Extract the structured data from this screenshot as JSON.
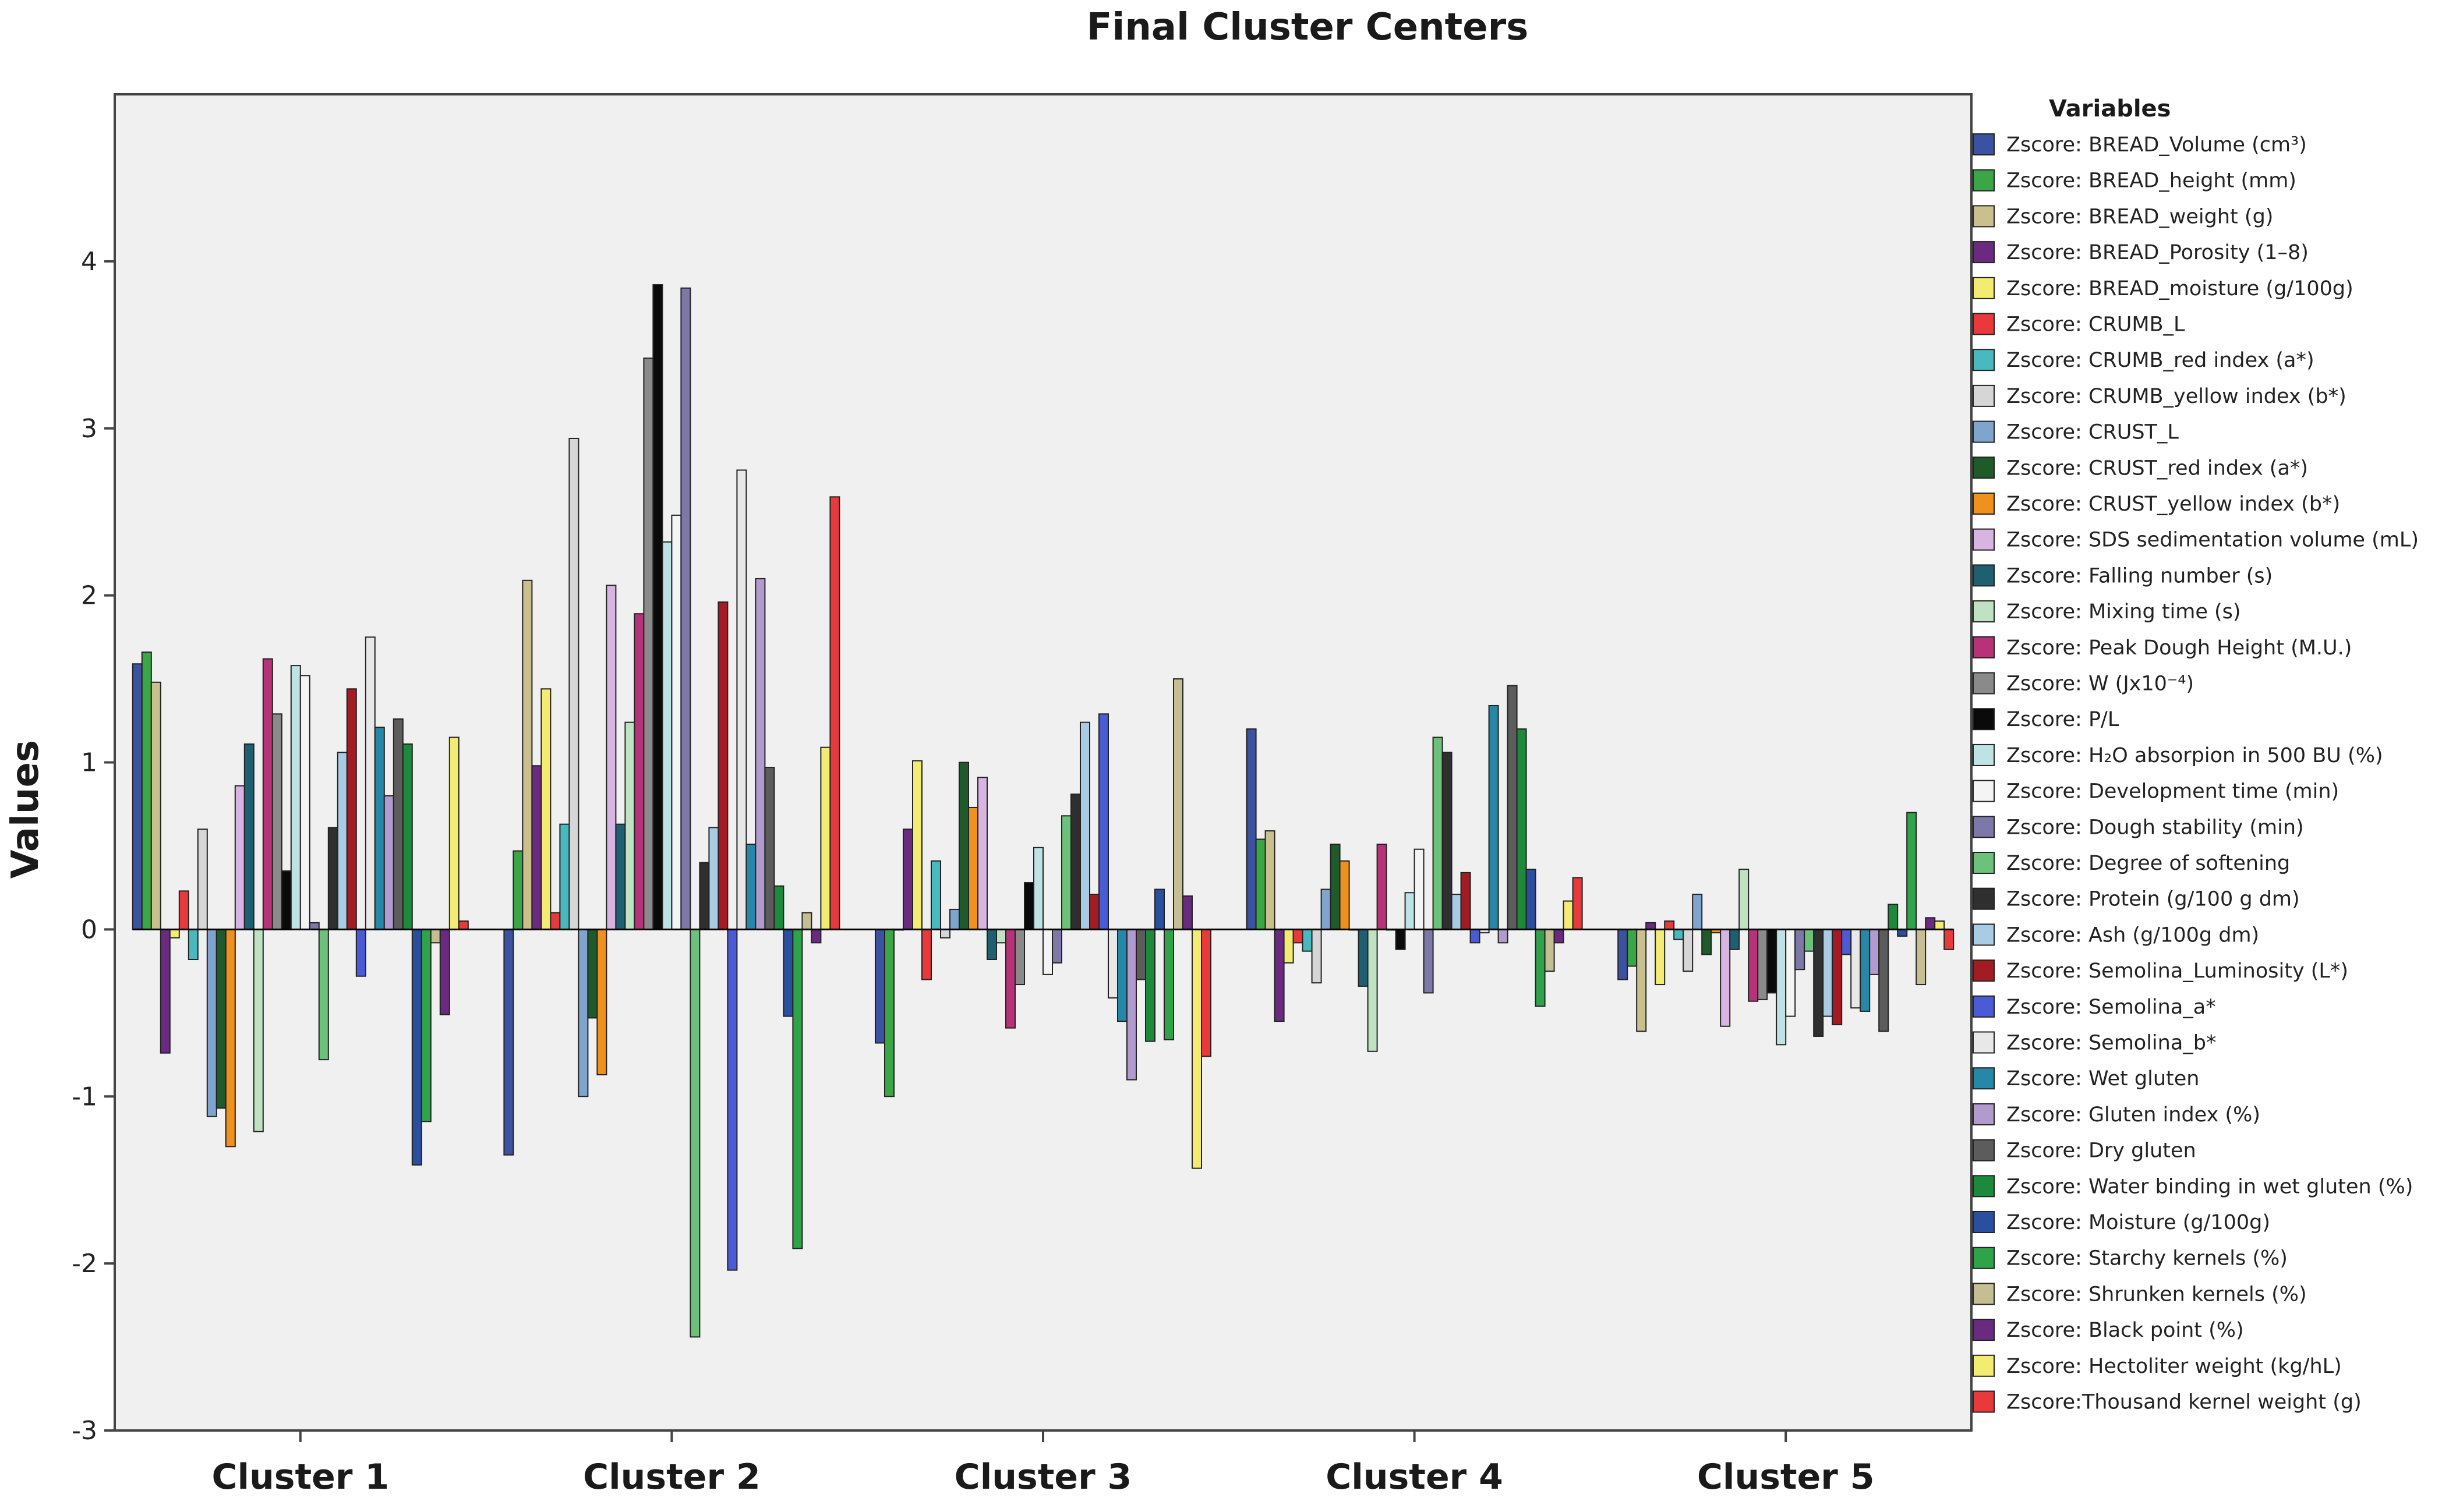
{
  "chart_data": {
    "type": "bar",
    "title": "Final Cluster Centers",
    "ylabel": "Values",
    "xlabel": "",
    "ylim": [
      -3,
      5
    ],
    "yticks": [
      -3,
      -2,
      -1,
      0,
      1,
      2,
      3,
      4
    ],
    "categories": [
      "Cluster 1",
      "Cluster 2",
      "Cluster 3",
      "Cluster 4",
      "Cluster 5"
    ],
    "legend_title": "Variables",
    "legend_position": "right",
    "grid": false,
    "series": [
      {
        "name": "Zscore: BREAD_Volume (cm³)",
        "color": "#3a52a0",
        "values": [
          1.59,
          -1.35,
          -0.68,
          1.2,
          -0.3
        ]
      },
      {
        "name": "Zscore: BREAD_height (mm)",
        "color": "#3aa646",
        "values": [
          1.66,
          0.47,
          -1.0,
          0.54,
          -0.22
        ]
      },
      {
        "name": "Zscore: BREAD_weight (g)",
        "color": "#c9c08e",
        "values": [
          1.48,
          2.09,
          0.0,
          0.59,
          -0.61
        ]
      },
      {
        "name": "Zscore: BREAD_Porosity (1–8)",
        "color": "#6a2a80",
        "values": [
          -0.74,
          0.98,
          0.6,
          -0.55,
          0.04
        ]
      },
      {
        "name": "Zscore: BREAD_moisture (g/100g)",
        "color": "#f4ec72",
        "values": [
          -0.05,
          1.44,
          1.01,
          -0.2,
          -0.33
        ]
      },
      {
        "name": "Zscore: CRUMB_L",
        "color": "#e8393b",
        "values": [
          0.23,
          0.1,
          -0.3,
          -0.08,
          0.05
        ]
      },
      {
        "name": "Zscore: CRUMB_red index (a*)",
        "color": "#49b9bf",
        "values": [
          -0.18,
          0.63,
          0.41,
          -0.13,
          -0.06
        ]
      },
      {
        "name": "Zscore: CRUMB_yellow index (b*)",
        "color": "#d6d6d6",
        "values": [
          0.6,
          2.94,
          -0.05,
          -0.32,
          -0.25
        ]
      },
      {
        "name": "Zscore: CRUST_L",
        "color": "#7fa5cf",
        "values": [
          -1.12,
          -1.0,
          0.12,
          0.24,
          0.21
        ]
      },
      {
        "name": "Zscore: CRUST_red index (a*)",
        "color": "#1f5a2b",
        "values": [
          -1.07,
          -0.53,
          1.0,
          0.51,
          -0.15
        ]
      },
      {
        "name": "Zscore: CRUST_yellow index (b*)",
        "color": "#f0901e",
        "values": [
          -1.3,
          -0.87,
          0.73,
          0.41,
          -0.02
        ]
      },
      {
        "name": "Zscore: SDS sedimentation volume (mL)",
        "color": "#d8b4e2",
        "values": [
          0.86,
          2.06,
          0.91,
          0.0,
          -0.58
        ]
      },
      {
        "name": "Zscore: Falling number (s)",
        "color": "#1f5f72",
        "values": [
          1.11,
          0.63,
          -0.18,
          -0.34,
          -0.12
        ]
      },
      {
        "name": "Zscore: Mixing time (s)",
        "color": "#bfe3c2",
        "values": [
          -1.21,
          1.24,
          -0.08,
          -0.73,
          0.36
        ]
      },
      {
        "name": "Zscore: Peak Dough Height (M.U.)",
        "color": "#b8327a",
        "values": [
          1.62,
          1.89,
          -0.59,
          0.51,
          -0.43
        ]
      },
      {
        "name": "Zscore: W (Jx10⁻⁴)",
        "color": "#8a8a8a",
        "values": [
          1.29,
          3.42,
          -0.33,
          0.0,
          -0.42
        ]
      },
      {
        "name": "Zscore: P/L",
        "color": "#0a0a0a",
        "values": [
          0.35,
          3.86,
          0.28,
          -0.12,
          -0.38
        ]
      },
      {
        "name": "Zscore: H₂O absorpion in 500 BU (%)",
        "color": "#bfe3e5",
        "values": [
          1.58,
          2.32,
          0.49,
          0.22,
          -0.69
        ]
      },
      {
        "name": "Zscore: Development time (min)",
        "color": "#f4f4f4",
        "values": [
          1.52,
          2.48,
          -0.27,
          0.48,
          -0.52
        ]
      },
      {
        "name": "Zscore: Dough stability (min)",
        "color": "#7c78a8",
        "values": [
          0.04,
          3.84,
          -0.2,
          -0.38,
          -0.24
        ]
      },
      {
        "name": "Zscore: Degree of softening",
        "color": "#6cc27a",
        "values": [
          -0.78,
          -2.44,
          0.68,
          1.15,
          -0.13
        ]
      },
      {
        "name": "Zscore: Protein (g/100 g dm)",
        "color": "#2f2f2f",
        "values": [
          0.61,
          0.4,
          0.81,
          1.06,
          -0.64
        ]
      },
      {
        "name": "Zscore: Ash (g/100g dm)",
        "color": "#a9cbe4",
        "values": [
          1.06,
          0.61,
          1.24,
          0.21,
          -0.52
        ]
      },
      {
        "name": "Zscore: Semolina_Luminosity (L*)",
        "color": "#a31c24",
        "values": [
          1.44,
          1.96,
          0.21,
          0.34,
          -0.57
        ]
      },
      {
        "name": "Zscore: Semolina_a*",
        "color": "#4b5bd6",
        "values": [
          -0.28,
          -2.04,
          1.29,
          -0.08,
          -0.15
        ]
      },
      {
        "name": "Zscore: Semolina_b*",
        "color": "#e8e8e8",
        "values": [
          1.75,
          2.75,
          -0.41,
          -0.02,
          -0.47
        ]
      },
      {
        "name": "Zscore: Wet gluten",
        "color": "#2787a8",
        "values": [
          1.21,
          0.51,
          -0.55,
          1.34,
          -0.49
        ]
      },
      {
        "name": "Zscore: Gluten index (%)",
        "color": "#b19acd",
        "values": [
          0.8,
          2.1,
          -0.9,
          -0.08,
          -0.27
        ]
      },
      {
        "name": "Zscore: Dry gluten",
        "color": "#5c5c5c",
        "values": [
          1.26,
          0.97,
          -0.3,
          1.46,
          -0.61
        ]
      },
      {
        "name": "Zscore: Water binding in wet gluten (%)",
        "color": "#1c8a3a",
        "values": [
          1.11,
          0.26,
          -0.67,
          1.2,
          0.15
        ]
      },
      {
        "name": "Zscore: Moisture (g/100g)",
        "color": "#2a4f9f",
        "values": [
          -1.41,
          -0.52,
          0.24,
          0.36,
          -0.04
        ]
      },
      {
        "name": "Zscore: Starchy kernels (%)",
        "color": "#2fa34a",
        "values": [
          -1.15,
          -1.91,
          -0.66,
          -0.46,
          0.7
        ]
      },
      {
        "name": "Zscore: Shrunken kernels (%)",
        "color": "#c4be92",
        "values": [
          -0.08,
          0.1,
          1.5,
          -0.25,
          -0.33
        ]
      },
      {
        "name": "Zscore: Black point (%)",
        "color": "#6a2a80",
        "values": [
          -0.51,
          -0.08,
          0.2,
          -0.08,
          0.07
        ]
      },
      {
        "name": "Zscore: Hectoliter weight (kg/hL)",
        "color": "#f4ec72",
        "values": [
          1.15,
          1.09,
          -1.43,
          0.17,
          0.05
        ]
      },
      {
        "name": "Zscore:Thousand kernel weight (g)",
        "color": "#e8393b",
        "values": [
          0.05,
          2.59,
          -0.76,
          0.31,
          -0.12
        ]
      }
    ]
  }
}
